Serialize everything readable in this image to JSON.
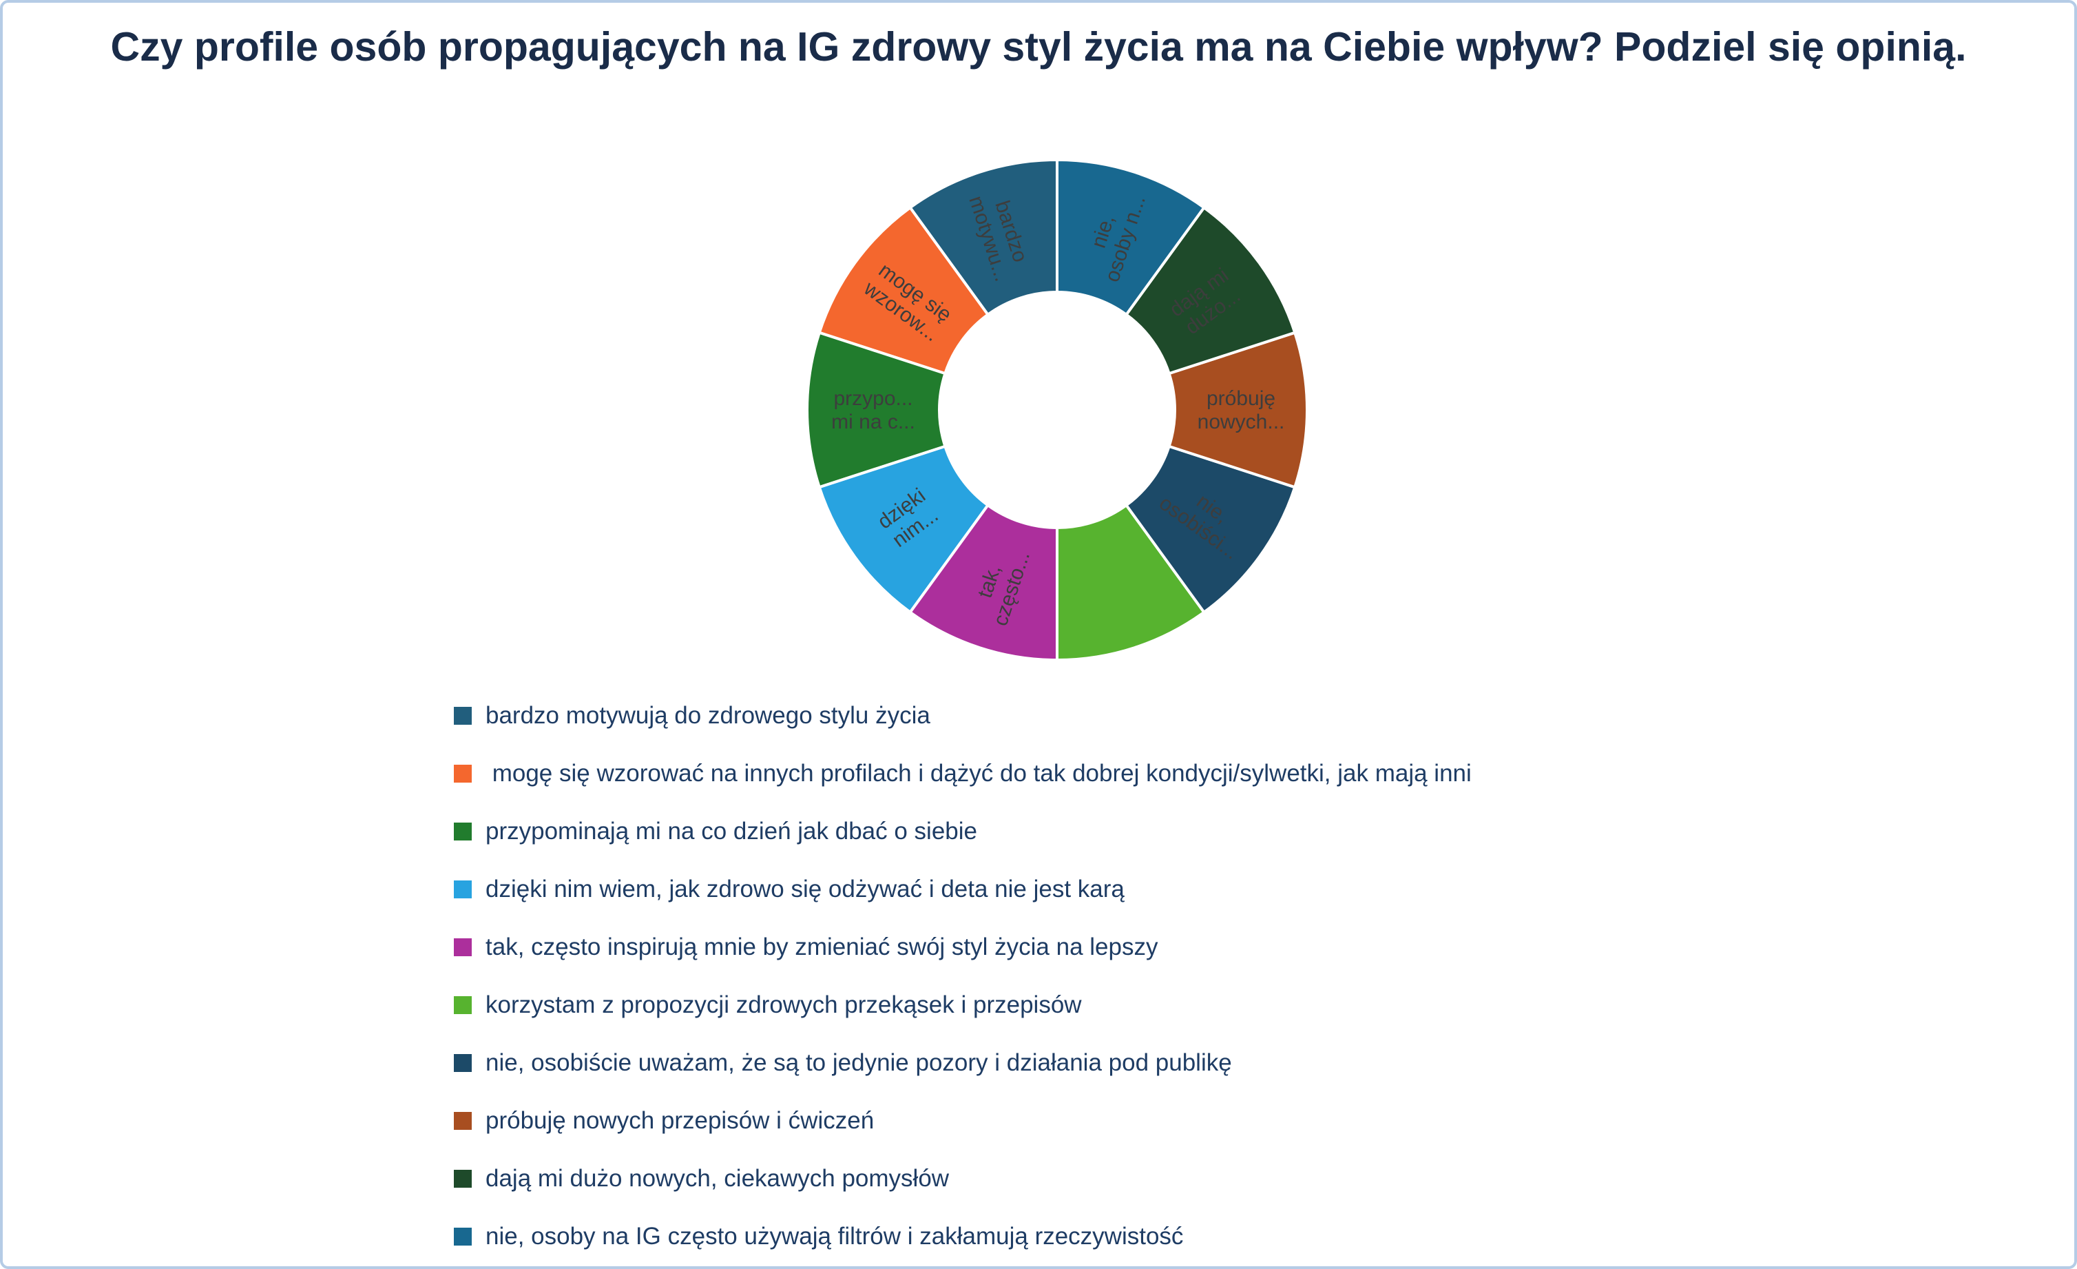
{
  "page": {
    "background": "#ffffff",
    "border_color": "#b5cce6"
  },
  "chart_data": {
    "type": "pie",
    "donut": true,
    "title": "Czy profile osób propagujących na IG zdrowy styl życia ma na Ciebie wpływ? Podziel się opinią.",
    "direction": "counterclockwise",
    "start_angle_deg": 0,
    "inner_radius_ratio": 0.47,
    "legend_position": "bottom-left",
    "units": "percent",
    "slice_label_color": "#3d3d3d",
    "title_color": "#1a2c49",
    "legend_text_color": "#1e3c64",
    "segments": [
      {
        "label": "bardzo motywują do zdrowego stylu życia",
        "value": 10,
        "color": "#215e7d",
        "slice_label_lines": [
          "bardzo",
          "motywu..."
        ]
      },
      {
        "label": " mogę się wzorować na innych profilach i dążyć do tak dobrej kondycji/sylwetki, jak mają inni",
        "value": 10,
        "color": "#f4672e",
        "slice_label_lines": [
          "mogę się",
          "wzorow..."
        ]
      },
      {
        "label": "przypominają mi na co dzień jak dbać o siebie",
        "value": 10,
        "color": "#217c2d",
        "slice_label_lines": [
          "przypo...",
          "mi na c..."
        ]
      },
      {
        "label": "dzięki nim wiem, jak zdrowo się odżywać i deta nie jest karą",
        "value": 10,
        "color": "#28a3e0",
        "slice_label_lines": [
          "dzięki",
          "nim..."
        ]
      },
      {
        "label": "tak, często inspirują mnie by zmieniać swój styl życia na lepszy",
        "value": 10,
        "color": "#ac2f9c",
        "slice_label_lines": [
          "tak,",
          "często..."
        ]
      },
      {
        "label": "korzystam z propozycji zdrowych przekąsek i przepisów",
        "value": 10,
        "color": "#57b32f",
        "slice_label_lines": []
      },
      {
        "label": "nie, osobiście uważam, że są to jedynie pozory i działania pod publikę",
        "value": 10,
        "color": "#1c4a68",
        "slice_label_lines": [
          "nie,",
          "osobiści..."
        ]
      },
      {
        "label": "próbuję nowych przepisów i ćwiczeń",
        "value": 10,
        "color": "#a84e20",
        "slice_label_lines": [
          "próbuję",
          "nowych..."
        ]
      },
      {
        "label": "dają mi dużo nowych, ciekawych pomysłów",
        "value": 10,
        "color": "#1e4a2a",
        "slice_label_lines": [
          "dają mi",
          "dużo..."
        ]
      },
      {
        "label": "nie, osoby na IG często używają filtrów i zakłamują rzeczywistość",
        "value": 10,
        "color": "#186890",
        "slice_label_lines": [
          "nie,",
          "osoby n..."
        ]
      }
    ]
  }
}
